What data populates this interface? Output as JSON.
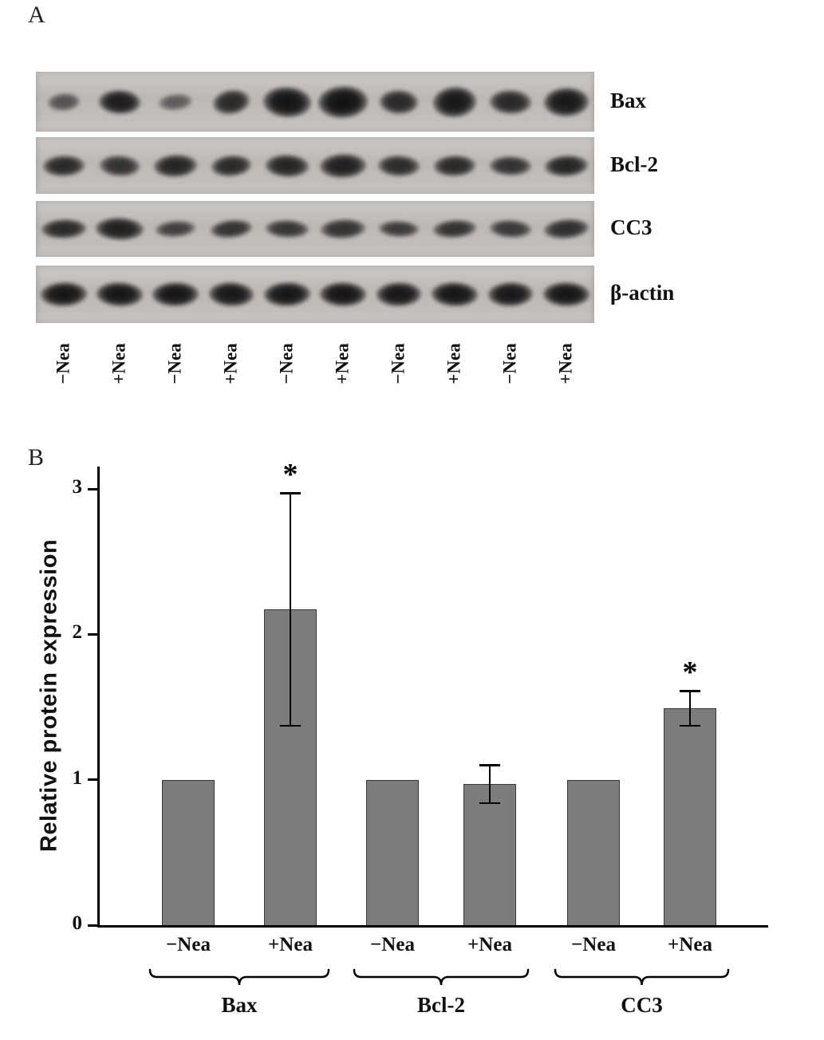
{
  "figure": {
    "panel_a_label": "A",
    "panel_b_label": "B"
  },
  "panel_a": {
    "lane_labels": [
      "−Nea",
      "+Nea",
      "−Nea",
      "+Nea",
      "−Nea",
      "+Nea",
      "−Nea",
      "+Nea",
      "−Nea",
      "+Nea"
    ],
    "rows": [
      {
        "name": "Bax",
        "bands": [
          [
            40,
            22,
            0.6,
            -4
          ],
          [
            52,
            30,
            0.92,
            2
          ],
          [
            42,
            20,
            0.55,
            -6
          ],
          [
            46,
            30,
            0.85,
            -10
          ],
          [
            60,
            38,
            0.97,
            3
          ],
          [
            62,
            40,
            0.98,
            -3
          ],
          [
            48,
            30,
            0.85,
            2
          ],
          [
            54,
            38,
            0.95,
            -4
          ],
          [
            52,
            30,
            0.85,
            2
          ],
          [
            56,
            36,
            0.95,
            -2
          ]
        ]
      },
      {
        "name": "Bcl-2",
        "bands": [
          [
            52,
            26,
            0.85,
            -2
          ],
          [
            50,
            26,
            0.8,
            3
          ],
          [
            54,
            28,
            0.88,
            -3
          ],
          [
            50,
            26,
            0.85,
            -5
          ],
          [
            54,
            28,
            0.88,
            2
          ],
          [
            58,
            30,
            0.9,
            -2
          ],
          [
            52,
            26,
            0.84,
            2
          ],
          [
            52,
            26,
            0.85,
            -2
          ],
          [
            52,
            24,
            0.8,
            1
          ],
          [
            54,
            26,
            0.88,
            -3
          ]
        ]
      },
      {
        "name": "CC3",
        "bands": [
          [
            56,
            24,
            0.85,
            -2
          ],
          [
            60,
            28,
            0.9,
            2
          ],
          [
            50,
            20,
            0.72,
            -4
          ],
          [
            52,
            22,
            0.8,
            -6
          ],
          [
            54,
            22,
            0.78,
            2
          ],
          [
            56,
            24,
            0.8,
            -3
          ],
          [
            50,
            20,
            0.75,
            2
          ],
          [
            54,
            22,
            0.8,
            -4
          ],
          [
            52,
            22,
            0.76,
            3
          ],
          [
            56,
            24,
            0.82,
            -5
          ]
        ]
      },
      {
        "name": "β-actin",
        "bands": [
          [
            58,
            30,
            0.96,
            -2
          ],
          [
            58,
            30,
            0.96,
            2
          ],
          [
            58,
            30,
            0.96,
            -1
          ],
          [
            56,
            30,
            0.95,
            2
          ],
          [
            58,
            30,
            0.96,
            -2
          ],
          [
            58,
            30,
            0.96,
            1
          ],
          [
            56,
            30,
            0.95,
            -1
          ],
          [
            58,
            30,
            0.96,
            2
          ],
          [
            56,
            30,
            0.95,
            -2
          ],
          [
            58,
            30,
            0.96,
            1
          ]
        ]
      }
    ]
  },
  "chart_data": {
    "type": "bar",
    "title": "",
    "xlabel": "",
    "ylabel": "Relative protein expression",
    "ylim": [
      0,
      3
    ],
    "yticks": [
      0,
      1,
      2,
      3
    ],
    "grid": false,
    "legend": false,
    "groups": [
      "Bax",
      "Bcl-2",
      "CC3"
    ],
    "categories": [
      "−Nea",
      "+Nea",
      "−Nea",
      "+Nea",
      "−Nea",
      "+Nea"
    ],
    "values": [
      1.0,
      2.17,
      1.0,
      0.97,
      1.0,
      1.49
    ],
    "errors": [
      0,
      0.8,
      0,
      0.13,
      0,
      0.12
    ],
    "significance": [
      "",
      "*",
      "",
      "",
      "",
      "*"
    ],
    "bar_color": "#7c7c7c"
  }
}
